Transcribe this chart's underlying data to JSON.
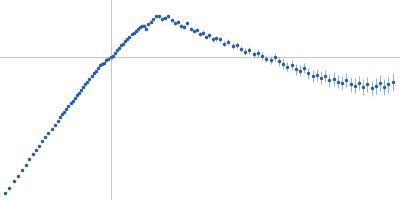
{
  "dot_color": "#2a5fa5",
  "errorbar_color": "#7aaad0",
  "axis_line_color": "#aaccee",
  "background_color": "#ffffff",
  "figsize": [
    4.0,
    2.0
  ],
  "dpi": 100,
  "xlim": [
    -1.05,
    2.75
  ],
  "ylim": [
    -1.05,
    0.42
  ],
  "vline_x": 0.0,
  "hline_y": 0.0,
  "markersize": 1.5,
  "elinewidth": 0.6,
  "axis_linewidth": 0.7,
  "x_data": [
    -1.0,
    -0.96,
    -0.92,
    -0.88,
    -0.84,
    -0.8,
    -0.77,
    -0.74,
    -0.71,
    -0.68,
    -0.65,
    -0.62,
    -0.59,
    -0.56,
    -0.53,
    -0.5,
    -0.48,
    -0.46,
    -0.44,
    -0.42,
    -0.4,
    -0.38,
    -0.36,
    -0.34,
    -0.32,
    -0.3,
    -0.28,
    -0.26,
    -0.24,
    -0.22,
    -0.2,
    -0.18,
    -0.16,
    -0.14,
    -0.12,
    -0.1,
    -0.08,
    -0.06,
    -0.04,
    -0.02,
    0.0,
    0.02,
    0.04,
    0.06,
    0.08,
    0.1,
    0.12,
    0.14,
    0.16,
    0.18,
    0.2,
    0.22,
    0.24,
    0.26,
    0.28,
    0.3,
    0.32,
    0.34,
    0.36,
    0.38,
    0.4,
    0.43,
    0.46,
    0.49,
    0.52,
    0.55,
    0.58,
    0.61,
    0.64,
    0.67,
    0.7,
    0.73,
    0.76,
    0.79,
    0.82,
    0.85,
    0.88,
    0.91,
    0.94,
    0.97,
    1.0,
    1.04,
    1.08,
    1.12,
    1.16,
    1.2,
    1.24,
    1.28,
    1.32,
    1.36,
    1.4,
    1.44,
    1.48,
    1.52,
    1.56,
    1.6,
    1.64,
    1.68,
    1.72,
    1.76,
    1.8,
    1.84,
    1.88,
    1.92,
    1.96,
    2.0,
    2.04,
    2.08,
    2.12,
    2.16,
    2.2,
    2.24,
    2.28,
    2.32,
    2.36,
    2.4,
    2.44,
    2.48,
    2.52,
    2.56,
    2.6,
    2.64,
    2.68
  ],
  "y_data": [
    -1.0,
    -0.96,
    -0.91,
    -0.87,
    -0.83,
    -0.79,
    -0.75,
    -0.71,
    -0.68,
    -0.65,
    -0.62,
    -0.59,
    -0.56,
    -0.53,
    -0.5,
    -0.47,
    -0.44,
    -0.42,
    -0.4,
    -0.38,
    -0.36,
    -0.34,
    -0.32,
    -0.3,
    -0.28,
    -0.26,
    -0.24,
    -0.22,
    -0.2,
    -0.18,
    -0.16,
    -0.14,
    -0.12,
    -0.1,
    -0.08,
    -0.06,
    -0.05,
    -0.04,
    -0.02,
    -0.01,
    0.0,
    0.01,
    0.03,
    0.05,
    0.07,
    0.09,
    0.1,
    0.12,
    0.13,
    0.15,
    0.17,
    0.18,
    0.19,
    0.21,
    0.22,
    0.23,
    0.23,
    0.21,
    0.24,
    0.26,
    0.28,
    0.3,
    0.3,
    0.28,
    0.29,
    0.3,
    0.27,
    0.25,
    0.26,
    0.23,
    0.22,
    0.25,
    0.21,
    0.19,
    0.2,
    0.17,
    0.18,
    0.15,
    0.16,
    0.13,
    0.14,
    0.13,
    0.1,
    0.11,
    0.08,
    0.09,
    0.06,
    0.04,
    0.05,
    0.02,
    0.03,
    0.01,
    -0.01,
    -0.02,
    0.0,
    -0.03,
    -0.05,
    -0.07,
    -0.06,
    -0.09,
    -0.1,
    -0.08,
    -0.12,
    -0.14,
    -0.13,
    -0.15,
    -0.14,
    -0.17,
    -0.16,
    -0.18,
    -0.19,
    -0.17,
    -0.2,
    -0.21,
    -0.19,
    -0.22,
    -0.2,
    -0.23,
    -0.21,
    -0.19,
    -0.22,
    -0.2,
    -0.18
  ],
  "y_err": [
    0.0,
    0.0,
    0.0,
    0.0,
    0.0,
    0.0,
    0.0,
    0.0,
    0.0,
    0.0,
    0.0,
    0.0,
    0.0,
    0.0,
    0.0,
    0.0,
    0.0,
    0.0,
    0.0,
    0.0,
    0.0,
    0.0,
    0.0,
    0.0,
    0.0,
    0.0,
    0.0,
    0.0,
    0.0,
    0.0,
    0.0,
    0.0,
    0.0,
    0.0,
    0.0,
    0.0,
    0.0,
    0.0,
    0.0,
    0.0,
    0.0,
    0.0,
    0.0,
    0.0,
    0.005,
    0.005,
    0.006,
    0.006,
    0.007,
    0.007,
    0.008,
    0.008,
    0.008,
    0.009,
    0.009,
    0.01,
    0.01,
    0.01,
    0.01,
    0.01,
    0.011,
    0.011,
    0.011,
    0.012,
    0.012,
    0.012,
    0.012,
    0.013,
    0.013,
    0.013,
    0.014,
    0.014,
    0.014,
    0.015,
    0.015,
    0.015,
    0.016,
    0.016,
    0.017,
    0.017,
    0.018,
    0.02,
    0.02,
    0.021,
    0.022,
    0.022,
    0.023,
    0.024,
    0.025,
    0.026,
    0.027,
    0.028,
    0.029,
    0.03,
    0.031,
    0.033,
    0.034,
    0.035,
    0.036,
    0.038,
    0.039,
    0.04,
    0.042,
    0.043,
    0.044,
    0.045,
    0.046,
    0.048,
    0.049,
    0.05,
    0.051,
    0.052,
    0.053,
    0.054,
    0.055,
    0.056,
    0.057,
    0.058,
    0.059,
    0.06,
    0.061,
    0.062,
    0.063
  ]
}
